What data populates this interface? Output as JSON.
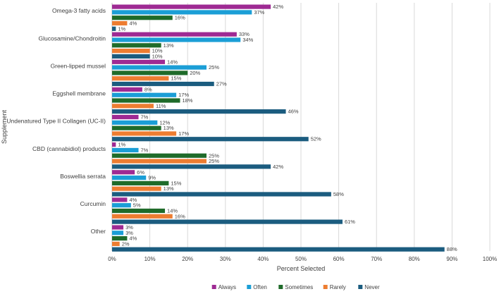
{
  "chart_data": {
    "type": "bar",
    "orientation": "horizontal",
    "xlabel": "Percent Selected",
    "ylabel": "Supplement",
    "xlim": [
      0,
      100
    ],
    "x_ticks": [
      "0%",
      "10%",
      "20%",
      "30%",
      "40%",
      "50%",
      "60%",
      "70%",
      "80%",
      "90%",
      "100%"
    ],
    "grid": true,
    "legend_position": "bottom",
    "categories": [
      "Omega-3 fatty acids",
      "Glucosamine/Chondroitin",
      "Green-lipped mussel",
      "Eggshell membrane",
      "Undenatured Type II Collagen (UC-II)",
      "CBD (cannabidiol) products",
      "Boswellia serrata",
      "Curcumin",
      "Other"
    ],
    "series": [
      {
        "name": "Always",
        "color": "#9e2a93",
        "values": [
          42,
          33,
          14,
          8,
          7,
          1,
          6,
          4,
          3
        ]
      },
      {
        "name": "Often",
        "color": "#1b9ed6",
        "values": [
          37,
          34,
          25,
          17,
          12,
          7,
          9,
          5,
          3
        ]
      },
      {
        "name": "Sometimes",
        "color": "#1f6b2a",
        "values": [
          16,
          13,
          20,
          18,
          13,
          25,
          15,
          14,
          4
        ]
      },
      {
        "name": "Rarely",
        "color": "#ed7d31",
        "values": [
          4,
          10,
          15,
          11,
          17,
          25,
          13,
          16,
          2
        ]
      },
      {
        "name": "Never",
        "color": "#1b5c7f",
        "values": [
          1,
          10,
          27,
          46,
          52,
          42,
          58,
          61,
          88
        ]
      }
    ]
  }
}
